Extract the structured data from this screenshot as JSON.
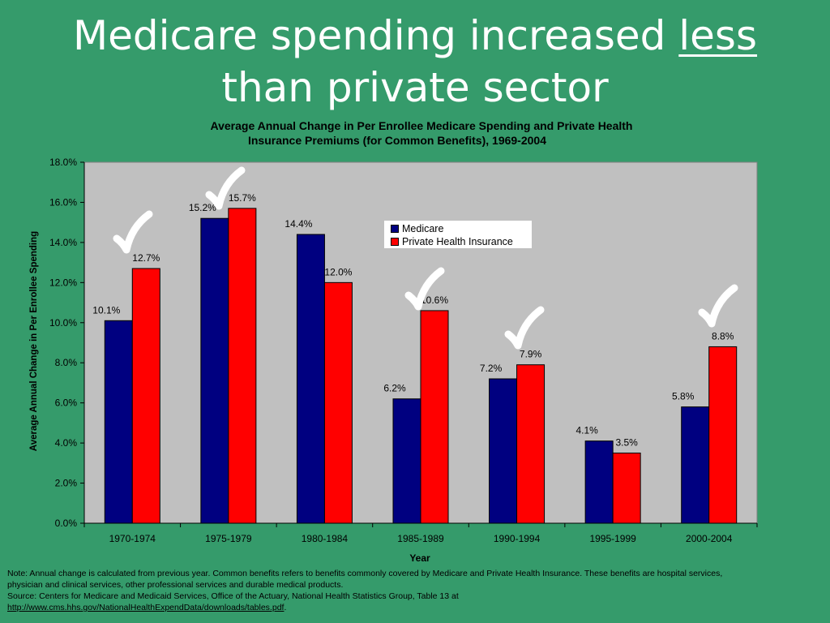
{
  "slide": {
    "title_part1": "Medicare spending increased ",
    "title_emphasis": "less",
    "title_part2": "than private sector"
  },
  "chart_data": {
    "type": "bar",
    "title_line1": "Average Annual Change in Per Enrollee Medicare Spending and Private Health",
    "title_line2": "Insurance Premiums (for Common Benefits), 1969-2004",
    "xlabel": "Year",
    "ylabel": "Average Annual Change in Per Enrollee Spending",
    "categories": [
      "1970-1974",
      "1975-1979",
      "1980-1984",
      "1985-1989",
      "1990-1994",
      "1995-1999",
      "2000-2004"
    ],
    "series": [
      {
        "name": "Medicare",
        "color": "#000080",
        "values": [
          10.1,
          15.2,
          14.4,
          6.2,
          7.2,
          4.1,
          5.8
        ],
        "labels": [
          "10.1%",
          "15.2%",
          "14.4%",
          "6.2%",
          "7.2%",
          "4.1%",
          "5.8%"
        ]
      },
      {
        "name": "Private Health Insurance",
        "color": "#ff0000",
        "values": [
          12.7,
          15.7,
          12.0,
          10.6,
          7.9,
          3.5,
          8.8
        ],
        "labels": [
          "12.7%",
          "15.7%",
          "12.0%",
          "10.6%",
          "7.9%",
          "3.5%",
          "8.8%"
        ]
      }
    ],
    "ylim": [
      0,
      18
    ],
    "yticks": [
      0,
      2,
      4,
      6,
      8,
      10,
      12,
      14,
      16,
      18
    ],
    "ytick_labels": [
      "0.0%",
      "2.0%",
      "4.0%",
      "6.0%",
      "8.0%",
      "10.0%",
      "12.0%",
      "14.0%",
      "16.0%",
      "18.0%"
    ],
    "grid": false,
    "plot_background": "#c0c0c0",
    "legend_position": "top-right",
    "checkmarks_at": [
      "1970-1974",
      "1975-1979",
      "1985-1989",
      "1990-1994",
      "2000-2004"
    ]
  },
  "footnote": {
    "line1": "Note: Annual change is calculated from previous year. Common benefits refers to benefits commonly covered by Medicare and Private Health Insurance. These benefits are hospital services,",
    "line2": "physician and clinical services, other professional services and durable medical products.",
    "line3": "Source: Centers for Medicare and Medicaid Services, Office of the Actuary, National Health Statistics Group, Table 13 at",
    "link": "http://www.cms.hhs.gov/NationalHealthExpendData/downloads/tables.pdf",
    "link_suffix": "."
  }
}
